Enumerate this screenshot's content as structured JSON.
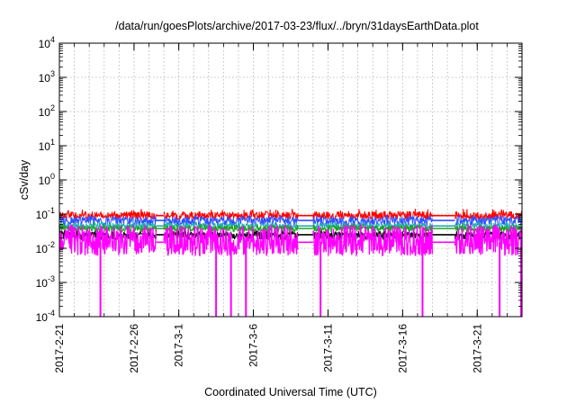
{
  "chart_data": {
    "type": "line",
    "title": "/data/run/goesPlots/archive/2017-03-23/flux/../bryn/31daysEarthData.plot",
    "xlabel": "Coordinated Universal Time (UTC)",
    "ylabel": "cSv/day",
    "y_scale": "log",
    "ylim": [
      0.0001,
      10000
    ],
    "y_ticks": [
      {
        "value": 0.0001,
        "base": "10",
        "exp": "-4"
      },
      {
        "value": 0.001,
        "base": "10",
        "exp": "-3"
      },
      {
        "value": 0.01,
        "base": "10",
        "exp": "-2"
      },
      {
        "value": 0.1,
        "base": "10",
        "exp": "-1"
      },
      {
        "value": 1,
        "base": "10",
        "exp": "0"
      },
      {
        "value": 10,
        "base": "10",
        "exp": "1"
      },
      {
        "value": 100,
        "base": "10",
        "exp": "2"
      },
      {
        "value": 1000,
        "base": "10",
        "exp": "3"
      },
      {
        "value": 10000,
        "base": "10",
        "exp": "4"
      }
    ],
    "xlim": [
      "2017-02-21",
      "2017-03-24"
    ],
    "x_ticks": [
      "2017-2-21",
      "2017-2-26",
      "2017-3-1",
      "2017-3-6",
      "2017-3-11",
      "2017-3-16",
      "2017-3-21"
    ],
    "x_tick_dates": [
      "2017-02-21",
      "2017-02-26",
      "2017-03-01",
      "2017-03-06",
      "2017-03-11",
      "2017-03-16",
      "2017-03-21"
    ],
    "grid": true,
    "segments": [
      {
        "start": "2017-02-21",
        "end": "2017-02-27T12:00"
      },
      {
        "start": "2017-02-28T00:00",
        "end": "2017-03-09T00:00"
      },
      {
        "start": "2017-03-10T00:00",
        "end": "2017-03-18T00:00"
      },
      {
        "start": "2017-03-19T12:00",
        "end": "2017-03-24"
      }
    ],
    "dropouts": [
      "2017-02-23T18:00",
      "2017-03-03T12:00",
      "2017-03-04T12:00",
      "2017-03-05T12:00",
      "2017-03-10T12:00",
      "2017-03-17T08:00",
      "2017-03-22T12:00",
      "2017-03-24"
    ],
    "series": [
      {
        "color": "#ff0000",
        "typical": 0.09,
        "min": 0.07,
        "max": 0.12
      },
      {
        "color": "#3050ff",
        "typical": 0.065,
        "min": 0.045,
        "max": 0.085
      },
      {
        "color": "#20b0b0",
        "typical": 0.045,
        "min": 0.035,
        "max": 0.055
      },
      {
        "color": "#20a020",
        "typical": 0.038,
        "min": 0.03,
        "max": 0.046
      },
      {
        "color": "#000000",
        "typical": 0.025,
        "min": 0.018,
        "max": 0.03
      },
      {
        "color": "#ff00ff",
        "typical": 0.015,
        "min": 0.006,
        "max": 0.045
      }
    ]
  }
}
